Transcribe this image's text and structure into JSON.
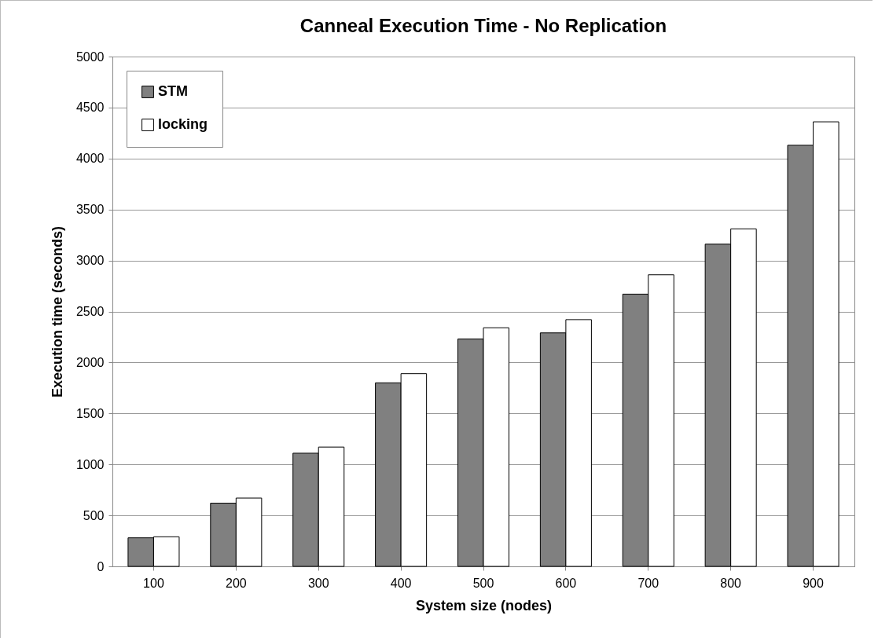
{
  "chart_data": {
    "type": "bar",
    "title": "Canneal Execution Time - No Replication",
    "xlabel": "System size (nodes)",
    "ylabel": "Execution time (seconds)",
    "categories": [
      "100",
      "200",
      "300",
      "400",
      "500",
      "600",
      "700",
      "800",
      "900"
    ],
    "series": [
      {
        "name": "STM",
        "color": "#808080",
        "values": [
          280,
          620,
          1110,
          1800,
          2230,
          2290,
          2670,
          3160,
          4130
        ]
      },
      {
        "name": "locking",
        "color": "#ffffff",
        "values": [
          290,
          670,
          1170,
          1890,
          2340,
          2420,
          2860,
          3310,
          4360
        ]
      }
    ],
    "ylim": [
      0,
      5000
    ],
    "yticks": [
      0,
      500,
      1000,
      1500,
      2000,
      2500,
      3000,
      3500,
      4000,
      4500,
      5000
    ],
    "grid": "y",
    "legend": "top left"
  }
}
